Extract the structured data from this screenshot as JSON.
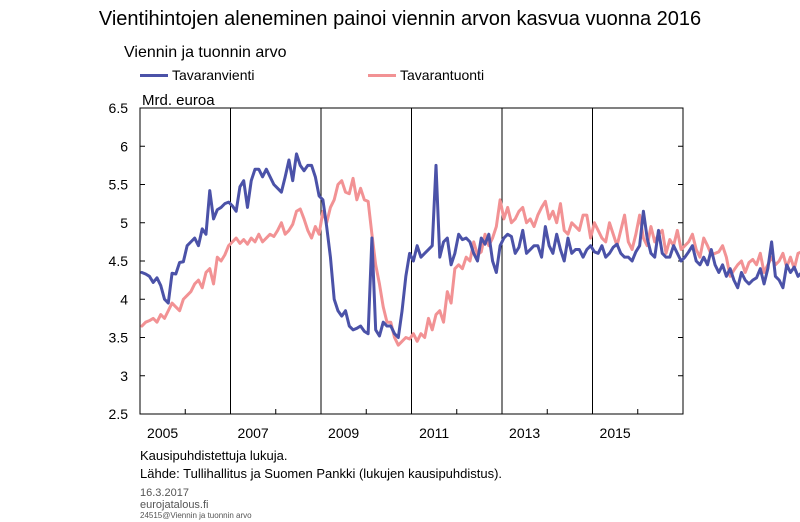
{
  "title": "Vientihintojen aleneminen painoi viennin arvon kasvua vuonna 2016",
  "subtitle": "Viennin ja tuonnin arvo",
  "unit": "Mrd. euroa",
  "footnotes": {
    "line1": "Kausipuhdistettuja lukuja.",
    "line2": "Lähde: Tullihallitus ja Suomen Pankki (lukujen kausipuhdistus).",
    "date": "16.3.2017",
    "site": "eurojatalous.fi",
    "ref": "24515@Viennin ja tuonnin arvo"
  },
  "colors": {
    "export": "#4b52a8",
    "import": "#f29294",
    "axis": "#000000"
  },
  "chart_data": {
    "type": "line",
    "title": "Vientihintojen aleneminen painoi viennin arvon kasvua vuonna 2016",
    "ylabel": "Mrd. euroa",
    "xlabel": "",
    "ylim": [
      2.5,
      6.5
    ],
    "yticks": [
      "2.5",
      "3",
      "3.5",
      "4",
      "4.5",
      "5",
      "5.5",
      "6",
      "6.5"
    ],
    "xlim": [
      2005,
      2017
    ],
    "xtick_labels": [
      "2005",
      "2007",
      "2009",
      "2011",
      "2013",
      "2015"
    ],
    "grid": false,
    "legend_position": "top",
    "series_start": "2005-01",
    "frequency": "monthly",
    "series": [
      {
        "name": "Tavaranvienti",
        "values": [
          4.35,
          4.33,
          4.3,
          4.22,
          4.28,
          4.18,
          4.0,
          3.95,
          4.34,
          4.33,
          4.48,
          4.49,
          4.7,
          4.75,
          4.8,
          4.7,
          4.92,
          4.85,
          5.42,
          5.05,
          5.17,
          5.2,
          5.25,
          5.27,
          5.22,
          5.15,
          5.47,
          5.55,
          5.2,
          5.55,
          5.7,
          5.7,
          5.6,
          5.7,
          5.6,
          5.5,
          5.45,
          5.4,
          5.6,
          5.82,
          5.55,
          5.9,
          5.75,
          5.68,
          5.75,
          5.75,
          5.6,
          5.35,
          5.3,
          4.95,
          4.55,
          4.0,
          3.85,
          3.78,
          3.85,
          3.65,
          3.6,
          3.62,
          3.65,
          3.58,
          3.55,
          4.8,
          3.6,
          3.52,
          3.7,
          3.65,
          3.65,
          3.55,
          3.5,
          3.85,
          4.3,
          4.6,
          4.5,
          4.7,
          4.55,
          4.6,
          4.65,
          4.7,
          5.75,
          4.55,
          4.75,
          4.8,
          4.45,
          4.6,
          4.85,
          4.78,
          4.8,
          4.75,
          4.6,
          4.5,
          4.8,
          4.72,
          4.85,
          4.5,
          4.35,
          4.7,
          4.8,
          4.85,
          4.82,
          4.6,
          4.68,
          4.9,
          4.6,
          4.65,
          4.7,
          4.7,
          4.55,
          4.95,
          4.7,
          4.6,
          4.85,
          4.65,
          4.5,
          4.8,
          4.6,
          4.65,
          4.65,
          4.55,
          4.65,
          4.7,
          4.62,
          4.6,
          4.7,
          4.55,
          4.6,
          4.68,
          4.72,
          4.6,
          4.55,
          4.55,
          4.5,
          4.62,
          4.7,
          5.15,
          4.8,
          4.6,
          4.55,
          4.9,
          4.6,
          4.55,
          4.55,
          4.7,
          4.6,
          4.5,
          4.55,
          4.62,
          4.7,
          4.5,
          4.45,
          4.55,
          4.45,
          4.65,
          4.45,
          4.35,
          4.45,
          4.3,
          4.4,
          4.25,
          4.15,
          4.35,
          4.25,
          4.2,
          4.25,
          4.28,
          4.4,
          4.2,
          4.4,
          4.75,
          4.3,
          4.25,
          4.15,
          4.45,
          4.35,
          4.42,
          4.3,
          4.35,
          4.42
        ]
      },
      {
        "name": "Tavarantuonti",
        "values": [
          3.65,
          3.7,
          3.72,
          3.75,
          3.7,
          3.8,
          3.75,
          3.85,
          3.95,
          3.9,
          3.85,
          4.0,
          4.05,
          4.1,
          4.2,
          4.25,
          4.15,
          4.35,
          4.4,
          4.2,
          4.55,
          4.5,
          4.58,
          4.7,
          4.75,
          4.8,
          4.73,
          4.78,
          4.72,
          4.8,
          4.75,
          4.85,
          4.75,
          4.8,
          4.85,
          4.82,
          4.9,
          5.0,
          4.85,
          4.9,
          4.98,
          5.15,
          5.18,
          5.05,
          4.9,
          4.8,
          4.95,
          4.85,
          5.15,
          5.0,
          5.2,
          5.3,
          5.5,
          5.55,
          5.4,
          5.38,
          5.58,
          5.3,
          5.45,
          5.3,
          5.28,
          4.85,
          4.45,
          4.2,
          3.9,
          3.7,
          3.7,
          3.5,
          3.4,
          3.45,
          3.5,
          3.48,
          3.55,
          3.45,
          3.55,
          3.5,
          3.75,
          3.6,
          3.8,
          3.85,
          3.7,
          4.1,
          3.95,
          4.4,
          4.45,
          4.4,
          4.55,
          4.5,
          4.75,
          4.58,
          4.62,
          4.85,
          4.7,
          4.8,
          4.95,
          5.3,
          5.05,
          5.2,
          5.0,
          5.05,
          5.15,
          5.2,
          5.0,
          5.05,
          4.95,
          5.1,
          5.2,
          5.28,
          5.05,
          5.15,
          5.0,
          5.25,
          4.9,
          4.85,
          5.0,
          4.95,
          4.9,
          5.1,
          5.1,
          4.8,
          5.0,
          4.9,
          4.8,
          4.75,
          5.0,
          4.85,
          4.7,
          4.9,
          5.1,
          4.75,
          4.65,
          4.85,
          5.1,
          4.8,
          4.7,
          4.95,
          4.75,
          4.85,
          4.9,
          4.6,
          4.78,
          4.7,
          4.9,
          4.65,
          4.7,
          4.75,
          4.85,
          4.65,
          4.55,
          4.8,
          4.7,
          4.58,
          4.6,
          4.62,
          4.7,
          4.55,
          4.3,
          4.38,
          4.45,
          4.5,
          4.35,
          4.48,
          4.52,
          4.45,
          4.6,
          4.35,
          4.45,
          4.55,
          4.45,
          4.5,
          4.6,
          4.42,
          4.55,
          4.4,
          4.6,
          4.62,
          4.55,
          4.58,
          4.52,
          4.62,
          4.6,
          4.85
        ]
      }
    ]
  }
}
